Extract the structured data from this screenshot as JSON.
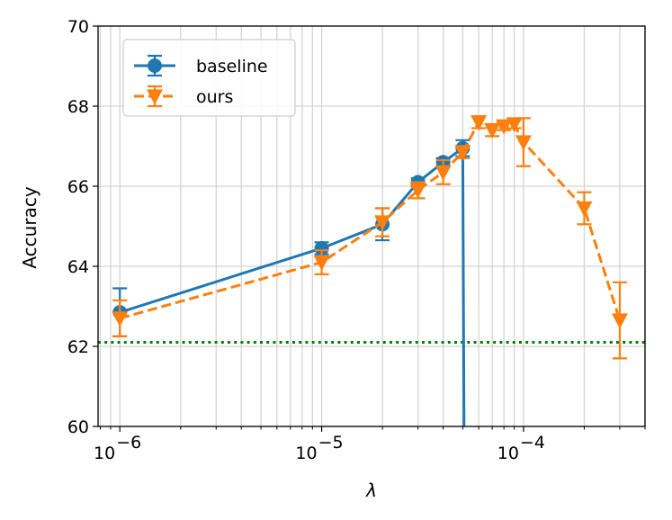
{
  "chart_data": {
    "type": "line",
    "xscale": "log",
    "xlabel": "λ",
    "ylabel": "Accuracy",
    "xlim": [
      7.8e-07,
      0.0004
    ],
    "ylim": [
      60,
      70
    ],
    "grid": true,
    "legend_position": "top-left",
    "y_ticks": [
      "60",
      "62",
      "64",
      "66",
      "68",
      "70"
    ],
    "x_ticks": [
      {
        "base": "10",
        "exp": "−6"
      },
      {
        "base": "10",
        "exp": "−5"
      },
      {
        "base": "10",
        "exp": "−4"
      }
    ],
    "reference_line": {
      "y": 62.1,
      "color": "#008000",
      "style": "dotted"
    },
    "series": [
      {
        "name": "baseline",
        "color": "#1f77b4",
        "marker": "circle",
        "linestyle": "solid",
        "x": [
          1e-06,
          1e-05,
          2e-05,
          3e-05,
          4e-05,
          5e-05
        ],
        "y": [
          62.85,
          64.45,
          65.05,
          66.1,
          66.6,
          66.95
        ],
        "yerr": [
          0.6,
          0.15,
          0.4,
          0.1,
          0.1,
          0.2
        ],
        "drop_to": 60
      },
      {
        "name": "ours",
        "color": "#ff7f0e",
        "marker": "triangle-down",
        "linestyle": "dashed",
        "x": [
          1e-06,
          1e-05,
          2e-05,
          3e-05,
          4e-05,
          5e-05,
          6e-05,
          7e-05,
          8e-05,
          9e-05,
          0.0001,
          0.0002,
          0.0003
        ],
        "y": [
          62.7,
          64.1,
          65.1,
          65.9,
          66.35,
          66.85,
          67.6,
          67.4,
          67.5,
          67.55,
          67.1,
          65.45,
          62.65
        ],
        "yerr": [
          0.45,
          0.3,
          0.35,
          0.2,
          0.3,
          0.15,
          0.15,
          0.15,
          0.1,
          0.1,
          0.6,
          0.4,
          0.95
        ]
      }
    ]
  }
}
